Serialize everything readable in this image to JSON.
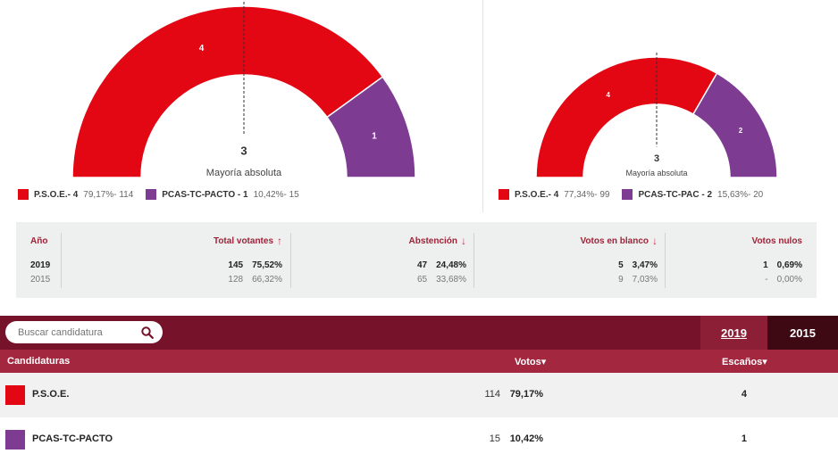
{
  "chart_data": [
    {
      "type": "pie",
      "variant": "semicircle",
      "categories": [
        "P.S.O.E.",
        "PCAS-TC-PACTO"
      ],
      "values": [
        4,
        1
      ],
      "colors": [
        "#e30613",
        "#7e3b92"
      ],
      "center_value": "3",
      "center_label": "Mayoría absoluta"
    },
    {
      "type": "pie",
      "variant": "semicircle",
      "categories": [
        "P.S.O.E.",
        "PCAS-TC-PAC"
      ],
      "values": [
        4,
        2
      ],
      "colors": [
        "#e30613",
        "#7e3b92"
      ],
      "center_value": "3",
      "center_label": "Mayoría absoluta"
    }
  ],
  "legend_left": [
    {
      "name": "P.S.O.E.- 4",
      "rest": "79,17%- 114",
      "color": "#e30613"
    },
    {
      "name": "PCAS-TC-PACTO - 1",
      "rest": "10,42%- 15",
      "color": "#7e3b92"
    }
  ],
  "legend_right": [
    {
      "name": "P.S.O.E.- 4",
      "rest": "77,34%- 99",
      "color": "#e30613"
    },
    {
      "name": "PCAS-TC-PAC - 2",
      "rest": "15,63%- 20",
      "color": "#7e3b92"
    }
  ],
  "summary": {
    "year_header": "Año",
    "years": [
      "2019",
      "2015"
    ],
    "columns": [
      {
        "header": "Total votantes",
        "arrow": "↑",
        "values": [
          [
            "145",
            "75,52%"
          ],
          [
            "128",
            "66,32%"
          ]
        ]
      },
      {
        "header": "Abstención",
        "arrow": "↓",
        "values": [
          [
            "47",
            "24,48%"
          ],
          [
            "65",
            "33,68%"
          ]
        ]
      },
      {
        "header": "Votos en blanco",
        "arrow": "↓",
        "values": [
          [
            "5",
            "3,47%"
          ],
          [
            "9",
            "7,03%"
          ]
        ]
      },
      {
        "header": "Votos nulos",
        "arrow": "",
        "values": [
          [
            "1",
            "0,69%"
          ],
          [
            "-",
            "0,00%"
          ]
        ]
      }
    ]
  },
  "search": {
    "placeholder": "Buscar candidatura"
  },
  "tabs": [
    "2019",
    "2015"
  ],
  "table": {
    "headers": {
      "candidaturas": "Candidaturas",
      "votos": "Votos▾",
      "escanos": "Escaños▾"
    },
    "rows": [
      {
        "name": "P.S.O.E.",
        "votes": "114",
        "pct": "79,17%",
        "seats": "4",
        "color": "#e30613"
      },
      {
        "name": "PCAS-TC-PACTO",
        "votes": "15",
        "pct": "10,42%",
        "seats": "1",
        "color": "#7e3b92"
      }
    ]
  }
}
